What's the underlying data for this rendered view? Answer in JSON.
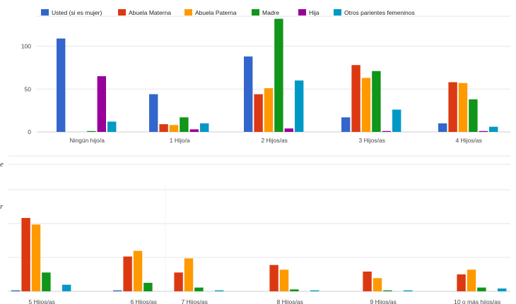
{
  "chart_data": [
    {
      "type": "bar",
      "title": "",
      "xlabel": "",
      "ylabel": "",
      "ylim": [
        0,
        135
      ],
      "yticks": [
        0,
        50,
        100
      ],
      "grid": true,
      "legend_position": "top-left",
      "categories": [
        "Ningún hijo/a",
        "1 Hijo/a",
        "2 Hijos/as",
        "3 Hijos/as",
        "4 Hijos/as"
      ],
      "series": [
        {
          "name": "Usted (si es mujer)",
          "color": "#3366cc",
          "values": [
            109,
            44,
            88,
            17,
            10
          ]
        },
        {
          "name": "Abuela Materna",
          "color": "#dc3912",
          "values": [
            0,
            9,
            44,
            78,
            58
          ]
        },
        {
          "name": "Abuela Paterna",
          "color": "#ff9900",
          "values": [
            0,
            8,
            51,
            63,
            57
          ]
        },
        {
          "name": "Madre",
          "color": "#109618",
          "values": [
            1,
            17,
            132,
            71,
            38
          ]
        },
        {
          "name": "Hija",
          "color": "#990099",
          "values": [
            65,
            3,
            4,
            1,
            1
          ]
        },
        {
          "name": "Otros parientes femeninos",
          "color": "#0099c6",
          "values": [
            12,
            10,
            60,
            26,
            6
          ]
        }
      ]
    },
    {
      "type": "bar",
      "title": "",
      "xlabel": "",
      "ylabel": "",
      "ylim": [
        0,
        135
      ],
      "grid": true,
      "categories": [
        "5 Hiios/as",
        "6 Hiios/as"
      ],
      "series": [
        {
          "name": "Usted (si es mujer)",
          "color": "#3366cc",
          "values": [
            1,
            1
          ]
        },
        {
          "name": "Abuela Materna",
          "color": "#dc3912",
          "values": [
            78,
            37
          ]
        },
        {
          "name": "Abuela Paterna",
          "color": "#ff9900",
          "values": [
            71,
            43
          ]
        },
        {
          "name": "Madre",
          "color": "#109618",
          "values": [
            20,
            9
          ]
        },
        {
          "name": "Hija",
          "color": "#990099",
          "values": [
            0,
            0
          ]
        },
        {
          "name": "Otros parientes femeninos",
          "color": "#0099c6",
          "values": [
            7,
            0
          ]
        }
      ]
    },
    {
      "type": "bar",
      "title": "",
      "xlabel": "",
      "ylabel": "",
      "ylim": [
        0,
        135
      ],
      "grid": true,
      "categories": [
        "7 Hiios/as",
        "8 Hiios/as",
        "9 Hiios/as",
        "10 o más hiios/as"
      ],
      "series": [
        {
          "name": "Usted (si es mujer)",
          "color": "#3366cc",
          "values": [
            0,
            0,
            0,
            0
          ]
        },
        {
          "name": "Abuela Materna",
          "color": "#dc3912",
          "values": [
            20,
            28,
            21,
            18
          ]
        },
        {
          "name": "Abuela Paterna",
          "color": "#ff9900",
          "values": [
            35,
            23,
            14,
            23
          ]
        },
        {
          "name": "Madre",
          "color": "#109618",
          "values": [
            4,
            2,
            1,
            4
          ]
        },
        {
          "name": "Hija",
          "color": "#990099",
          "values": [
            0,
            0,
            0,
            0
          ]
        },
        {
          "name": "Otros parientes femeninos",
          "color": "#0099c6",
          "values": [
            1,
            1,
            1,
            3
          ]
        }
      ]
    }
  ],
  "fragments": [
    "e",
    "r"
  ]
}
